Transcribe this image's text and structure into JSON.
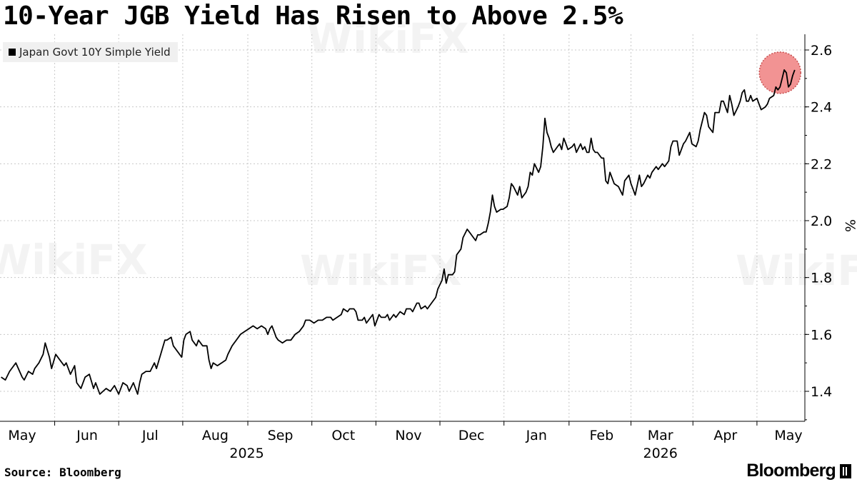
{
  "watermark": "WikiFX",
  "source": "Source: Bloomberg",
  "brand": "Bloomberg",
  "chart_data": {
    "type": "line",
    "title": "10-Year JGB Yield Has Risen to Above 2.5%",
    "ylabel": "%",
    "ylim": [
      1.3,
      2.65
    ],
    "yticks": [
      1.4,
      1.6,
      1.8,
      2.0,
      2.2,
      2.4,
      2.6
    ],
    "grid": true,
    "legend_position": "top-left",
    "highlight": {
      "x": 361,
      "y": 2.52,
      "color": "#f08080"
    },
    "x_range": [
      0,
      377
    ],
    "x_ticks": [
      {
        "label": "May",
        "x": 0
      },
      {
        "label": "Jun",
        "x": 31
      },
      {
        "label": "Jul",
        "x": 61
      },
      {
        "label": "Aug",
        "x": 92
      },
      {
        "label": "Sep",
        "x": 123
      },
      {
        "label": "Oct",
        "x": 153
      },
      {
        "label": "Nov",
        "x": 184
      },
      {
        "label": "Dec",
        "x": 214
      },
      {
        "label": "Jan",
        "x": 245
      },
      {
        "label": "Feb",
        "x": 276
      },
      {
        "label": "Mar",
        "x": 304
      },
      {
        "label": "Apr",
        "x": 335
      },
      {
        "label": "May",
        "x": 365
      }
    ],
    "year_labels": [
      {
        "label": "2025",
        "x": 107
      },
      {
        "label": "2026",
        "x": 304
      }
    ],
    "series": [
      {
        "name": "Japan Govt 10Y Simple Yield",
        "color": "#000000",
        "points": [
          [
            -10,
            1.45
          ],
          [
            -8,
            1.44
          ],
          [
            -6,
            1.47
          ],
          [
            -3,
            1.5
          ],
          [
            0,
            1.45
          ],
          [
            1,
            1.44
          ],
          [
            3,
            1.47
          ],
          [
            5,
            1.46
          ],
          [
            6,
            1.48
          ],
          [
            8,
            1.5
          ],
          [
            10,
            1.53
          ],
          [
            11,
            1.57
          ],
          [
            13,
            1.52
          ],
          [
            14,
            1.48
          ],
          [
            16,
            1.53
          ],
          [
            18,
            1.51
          ],
          [
            20,
            1.49
          ],
          [
            21,
            1.5
          ],
          [
            23,
            1.46
          ],
          [
            25,
            1.49
          ],
          [
            26,
            1.43
          ],
          [
            28,
            1.41
          ],
          [
            30,
            1.45
          ],
          [
            32,
            1.46
          ],
          [
            34,
            1.41
          ],
          [
            35,
            1.43
          ],
          [
            37,
            1.39
          ],
          [
            40,
            1.41
          ],
          [
            42,
            1.4
          ],
          [
            44,
            1.42
          ],
          [
            46,
            1.39
          ],
          [
            48,
            1.43
          ],
          [
            50,
            1.42
          ],
          [
            51,
            1.4
          ],
          [
            53,
            1.43
          ],
          [
            55,
            1.39
          ],
          [
            56,
            1.43
          ],
          [
            57,
            1.46
          ],
          [
            59,
            1.47
          ],
          [
            61,
            1.47
          ],
          [
            63,
            1.5
          ],
          [
            64,
            1.48
          ],
          [
            66,
            1.53
          ],
          [
            68,
            1.58
          ],
          [
            69,
            1.58
          ],
          [
            71,
            1.59
          ],
          [
            72,
            1.56
          ],
          [
            74,
            1.54
          ],
          [
            76,
            1.52
          ],
          [
            77,
            1.58
          ],
          [
            78,
            1.6
          ],
          [
            80,
            1.61
          ],
          [
            81,
            1.58
          ],
          [
            83,
            1.56
          ],
          [
            84,
            1.58
          ],
          [
            86,
            1.56
          ],
          [
            88,
            1.56
          ],
          [
            89,
            1.51
          ],
          [
            90,
            1.48
          ],
          [
            91,
            1.5
          ],
          [
            93,
            1.49
          ],
          [
            95,
            1.5
          ],
          [
            97,
            1.51
          ],
          [
            98,
            1.53
          ],
          [
            100,
            1.56
          ],
          [
            102,
            1.58
          ],
          [
            104,
            1.6
          ],
          [
            106,
            1.61
          ],
          [
            108,
            1.62
          ],
          [
            110,
            1.63
          ],
          [
            112,
            1.62
          ],
          [
            114,
            1.63
          ],
          [
            116,
            1.62
          ],
          [
            117,
            1.6
          ],
          [
            118,
            1.62
          ],
          [
            119,
            1.63
          ],
          [
            120,
            1.61
          ],
          [
            121,
            1.59
          ],
          [
            122,
            1.58
          ],
          [
            124,
            1.57
          ],
          [
            126,
            1.58
          ],
          [
            128,
            1.58
          ],
          [
            130,
            1.6
          ],
          [
            132,
            1.61
          ],
          [
            134,
            1.63
          ],
          [
            135,
            1.65
          ],
          [
            137,
            1.65
          ],
          [
            139,
            1.64
          ],
          [
            141,
            1.65
          ],
          [
            143,
            1.65
          ],
          [
            145,
            1.66
          ],
          [
            147,
            1.66
          ],
          [
            148,
            1.65
          ],
          [
            150,
            1.66
          ],
          [
            152,
            1.67
          ],
          [
            153,
            1.69
          ],
          [
            155,
            1.68
          ],
          [
            156,
            1.69
          ],
          [
            158,
            1.69
          ],
          [
            159,
            1.68
          ],
          [
            160,
            1.65
          ],
          [
            162,
            1.65
          ],
          [
            163,
            1.66
          ],
          [
            164,
            1.64
          ],
          [
            166,
            1.66
          ],
          [
            167,
            1.67
          ],
          [
            168,
            1.63
          ],
          [
            170,
            1.67
          ],
          [
            171,
            1.66
          ],
          [
            173,
            1.66
          ],
          [
            174,
            1.67
          ],
          [
            175,
            1.65
          ],
          [
            177,
            1.67
          ],
          [
            178,
            1.66
          ],
          [
            180,
            1.68
          ],
          [
            182,
            1.67
          ],
          [
            183,
            1.69
          ],
          [
            185,
            1.69
          ],
          [
            186,
            1.68
          ],
          [
            188,
            1.71
          ],
          [
            189,
            1.71
          ],
          [
            190,
            1.69
          ],
          [
            192,
            1.7
          ],
          [
            193,
            1.69
          ],
          [
            195,
            1.71
          ],
          [
            197,
            1.73
          ],
          [
            198,
            1.76
          ],
          [
            200,
            1.79
          ],
          [
            201,
            1.83
          ],
          [
            202,
            1.78
          ],
          [
            203,
            1.81
          ],
          [
            205,
            1.81
          ],
          [
            206,
            1.82
          ],
          [
            207,
            1.88
          ],
          [
            209,
            1.9
          ],
          [
            210,
            1.94
          ],
          [
            212,
            1.97
          ],
          [
            213,
            1.96
          ],
          [
            214,
            1.95
          ],
          [
            216,
            1.93
          ],
          [
            217,
            1.95
          ],
          [
            218,
            1.95
          ],
          [
            220,
            1.96
          ],
          [
            221,
            1.96
          ],
          [
            222,
            1.99
          ],
          [
            223,
            2.03
          ],
          [
            224,
            2.09
          ],
          [
            225,
            2.05
          ],
          [
            226,
            2.03
          ],
          [
            228,
            2.04
          ],
          [
            229,
            2.04
          ],
          [
            231,
            2.05
          ],
          [
            232,
            2.08
          ],
          [
            233,
            2.13
          ],
          [
            234,
            2.12
          ],
          [
            236,
            2.09
          ],
          [
            237,
            2.12
          ],
          [
            238,
            2.08
          ],
          [
            240,
            2.1
          ],
          [
            241,
            2.12
          ],
          [
            242,
            2.17
          ],
          [
            243,
            2.16
          ],
          [
            244,
            2.2
          ],
          [
            246,
            2.17
          ],
          [
            247,
            2.19
          ],
          [
            248,
            2.26
          ],
          [
            249,
            2.36
          ],
          [
            250,
            2.31
          ],
          [
            251,
            2.29
          ],
          [
            252,
            2.26
          ],
          [
            253,
            2.24
          ],
          [
            255,
            2.26
          ],
          [
            256,
            2.27
          ],
          [
            257,
            2.25
          ],
          [
            258,
            2.29
          ],
          [
            259,
            2.27
          ],
          [
            260,
            2.25
          ],
          [
            262,
            2.26
          ],
          [
            263,
            2.27
          ],
          [
            264,
            2.24
          ],
          [
            266,
            2.27
          ],
          [
            267,
            2.25
          ],
          [
            268,
            2.26
          ],
          [
            269,
            2.24
          ],
          [
            270,
            2.24
          ],
          [
            271,
            2.29
          ],
          [
            272,
            2.25
          ],
          [
            273,
            2.24
          ],
          [
            274,
            2.24
          ],
          [
            276,
            2.22
          ],
          [
            277,
            2.22
          ],
          [
            278,
            2.14
          ],
          [
            279,
            2.13
          ],
          [
            280,
            2.17
          ],
          [
            282,
            2.13
          ],
          [
            284,
            2.12
          ],
          [
            286,
            2.09
          ],
          [
            287,
            2.14
          ],
          [
            289,
            2.16
          ],
          [
            290,
            2.13
          ],
          [
            291,
            2.11
          ],
          [
            292,
            2.09
          ],
          [
            294,
            2.16
          ],
          [
            295,
            2.12
          ],
          [
            296,
            2.13
          ],
          [
            298,
            2.16
          ],
          [
            299,
            2.15
          ],
          [
            300,
            2.17
          ],
          [
            302,
            2.19
          ],
          [
            303,
            2.18
          ],
          [
            305,
            2.2
          ],
          [
            306,
            2.19
          ],
          [
            308,
            2.21
          ],
          [
            309,
            2.26
          ],
          [
            310,
            2.28
          ],
          [
            312,
            2.28
          ],
          [
            313,
            2.23
          ],
          [
            315,
            2.27
          ],
          [
            316,
            2.28
          ],
          [
            318,
            2.31
          ],
          [
            319,
            2.27
          ],
          [
            321,
            2.26
          ],
          [
            322,
            2.28
          ],
          [
            323,
            2.32
          ],
          [
            325,
            2.38
          ],
          [
            326,
            2.37
          ],
          [
            327,
            2.33
          ],
          [
            329,
            2.31
          ],
          [
            330,
            2.38
          ],
          [
            332,
            2.38
          ],
          [
            333,
            2.42
          ],
          [
            334,
            2.42
          ],
          [
            336,
            2.38
          ],
          [
            337,
            2.44
          ],
          [
            338,
            2.41
          ],
          [
            339,
            2.37
          ],
          [
            341,
            2.4
          ],
          [
            342,
            2.42
          ],
          [
            343,
            2.45
          ],
          [
            344,
            2.46
          ],
          [
            345,
            2.42
          ],
          [
            346,
            2.42
          ],
          [
            347,
            2.44
          ],
          [
            348,
            2.42
          ],
          [
            350,
            2.43
          ],
          [
            351,
            2.41
          ],
          [
            352,
            2.39
          ],
          [
            354,
            2.4
          ],
          [
            355,
            2.41
          ],
          [
            356,
            2.43
          ],
          [
            358,
            2.44
          ],
          [
            359,
            2.47
          ],
          [
            360,
            2.46
          ],
          [
            361,
            2.47
          ],
          [
            362,
            2.5
          ],
          [
            363,
            2.53
          ],
          [
            364,
            2.52
          ],
          [
            365,
            2.47
          ],
          [
            366,
            2.48
          ],
          [
            367,
            2.51
          ],
          [
            368,
            2.53
          ]
        ]
      }
    ]
  }
}
